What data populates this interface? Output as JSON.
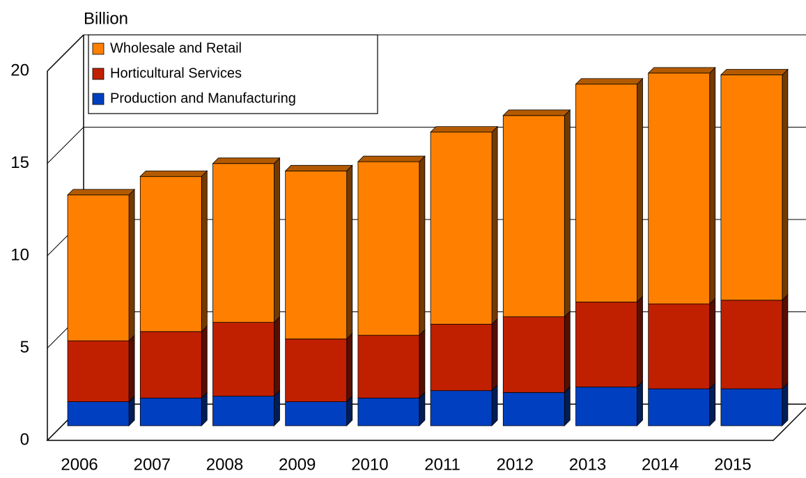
{
  "chart_data": {
    "type": "bar",
    "stacked": true,
    "y_label": "Billion",
    "categories": [
      "2006",
      "2007",
      "2008",
      "2009",
      "2010",
      "2011",
      "2012",
      "2013",
      "2014",
      "2015"
    ],
    "series": [
      {
        "name": "Production and Manufacturing",
        "color": "#0040c0",
        "values": [
          1.3,
          1.5,
          1.6,
          1.3,
          1.5,
          1.9,
          1.8,
          2.1,
          2.0,
          2.0
        ]
      },
      {
        "name": "Horticultural Services",
        "color": "#c02000",
        "values": [
          3.3,
          3.6,
          4.0,
          3.4,
          3.4,
          3.6,
          4.1,
          4.6,
          4.6,
          4.8
        ]
      },
      {
        "name": "Wholesale and Retail",
        "color": "#ff8000",
        "values": [
          7.9,
          8.4,
          8.6,
          9.1,
          9.4,
          10.4,
          10.9,
          11.8,
          12.5,
          12.2
        ]
      }
    ],
    "ylim": [
      0,
      20
    ],
    "yticks": [
      0,
      5,
      10,
      15,
      20
    ],
    "grid": true
  }
}
